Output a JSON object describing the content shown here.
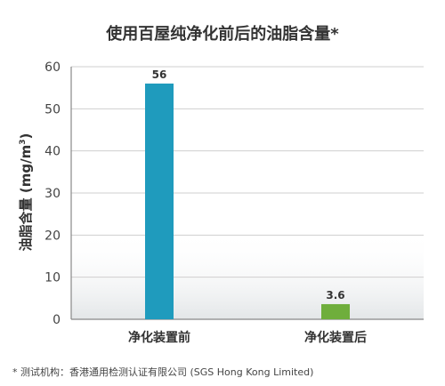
{
  "chart_data": {
    "type": "bar",
    "title": "使用百屋纯净化前后的油脂含量*",
    "ylabel_main": "油脂含量 (mg/m",
    "ylabel_sup": "3",
    "ylabel_close": ")",
    "xlabel": "",
    "categories": [
      "净化装置前",
      "净化装置后"
    ],
    "values": [
      56,
      3.6
    ],
    "value_labels": [
      "56",
      "3.6"
    ],
    "colors": [
      "#1f9bbd",
      "#6fae3c"
    ],
    "ylim": [
      0,
      60
    ],
    "yticks": [
      0,
      10,
      20,
      30,
      40,
      50,
      60
    ],
    "grid": true
  },
  "footnote": "* 测试机构：香港通用检测认证有限公司 (SGS Hong Kong Limited)"
}
